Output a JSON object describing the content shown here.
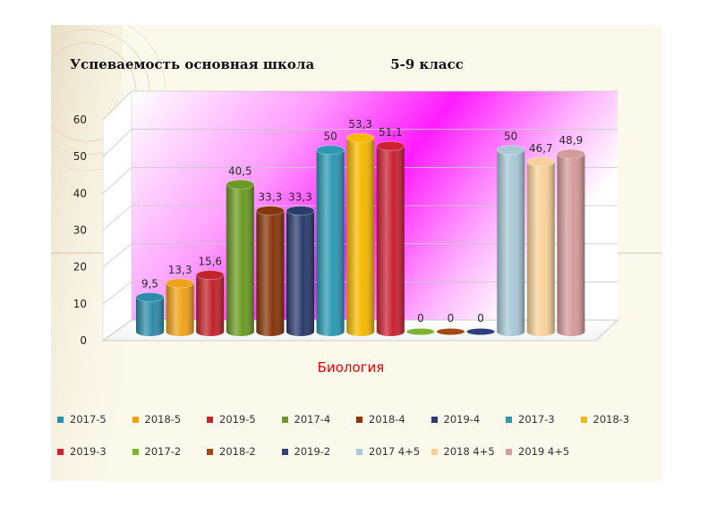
{
  "page": {
    "title_left": "Успеваемость основная школа",
    "title_right": "5-9 класс"
  },
  "chart_data": {
    "type": "bar",
    "style": "3d cylinder columns",
    "xlabel": "Биология",
    "xlabel_color": "#e00000",
    "ylim": [
      0,
      60
    ],
    "yticks": [
      0,
      10,
      20,
      30,
      40,
      50,
      60
    ],
    "grid": true,
    "legend_position": "bottom",
    "series": [
      {
        "name": "2017-5",
        "value": 9.5,
        "label": "9,5",
        "color": "#2e8ca8"
      },
      {
        "name": "2018-5",
        "value": 13.3,
        "label": "13,3",
        "color": "#eea21a"
      },
      {
        "name": "2019-5",
        "value": 15.6,
        "label": "15,6",
        "color": "#c4242c"
      },
      {
        "name": "2017-4",
        "value": 40.5,
        "label": "40,5",
        "color": "#6a9a22"
      },
      {
        "name": "2018-4",
        "value": 33.3,
        "label": "33,3",
        "color": "#86360a"
      },
      {
        "name": "2019-4",
        "value": 33.3,
        "label": "33,3",
        "color": "#2a3c6c"
      },
      {
        "name": "2017-3",
        "value": 50,
        "label": "50",
        "color": "#2c98b2"
      },
      {
        "name": "2018-3",
        "value": 53.3,
        "label": "53,3",
        "color": "#f5b800"
      },
      {
        "name": "2019-3",
        "value": 51.1,
        "label": "51,1",
        "color": "#cc2233"
      },
      {
        "name": "2017-2",
        "value": 0,
        "label": "0",
        "color": "#7db331"
      },
      {
        "name": "2018-2",
        "value": 0,
        "label": "0",
        "color": "#a34a10"
      },
      {
        "name": "2019-2",
        "value": 0,
        "label": "0",
        "color": "#2c3f7a"
      },
      {
        "name": "2017 4+5",
        "value": 50,
        "label": "50",
        "color": "#a8c8d6"
      },
      {
        "name": "2018 4+5",
        "value": 46.7,
        "label": "46,7",
        "color": "#f8d198"
      },
      {
        "name": "2019 4+5",
        "value": 48.9,
        "label": "48,9",
        "color": "#d59a9a"
      }
    ]
  }
}
